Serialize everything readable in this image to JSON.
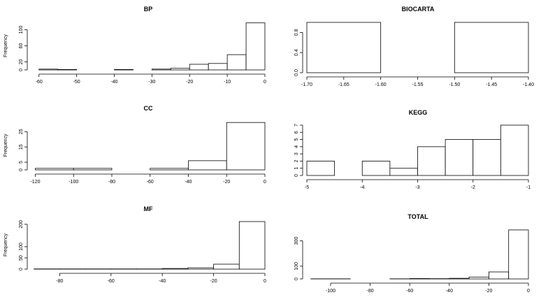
{
  "chart_data": [
    {
      "type": "bar",
      "title": "BP",
      "ylabel": "Frequency",
      "xlim": [
        -62,
        0
      ],
      "ylim": [
        0,
        120
      ],
      "xticks": [
        -60,
        -50,
        -40,
        -30,
        -20,
        -10,
        0
      ],
      "yticks": [
        0,
        20,
        60,
        100
      ],
      "bins": [
        {
          "x0": -60,
          "x1": -55,
          "count": 2
        },
        {
          "x0": -55,
          "x1": -50,
          "count": 1
        },
        {
          "x0": -50,
          "x1": -45,
          "count": 0
        },
        {
          "x0": -45,
          "x1": -40,
          "count": 0
        },
        {
          "x0": -40,
          "x1": -35,
          "count": 1
        },
        {
          "x0": -35,
          "x1": -30,
          "count": 0
        },
        {
          "x0": -30,
          "x1": -25,
          "count": 2
        },
        {
          "x0": -25,
          "x1": -20,
          "count": 4
        },
        {
          "x0": -20,
          "x1": -15,
          "count": 14
        },
        {
          "x0": -15,
          "x1": -10,
          "count": 16
        },
        {
          "x0": -10,
          "x1": -5,
          "count": 38
        },
        {
          "x0": -5,
          "x1": 0,
          "count": 117
        }
      ]
    },
    {
      "type": "bar",
      "title": "BIOCARTA",
      "ylabel": "",
      "xlim": [
        -1.7,
        -1.4
      ],
      "ylim": [
        0,
        1
      ],
      "xticks": [
        "-1.70",
        "-1.65",
        "-1.60",
        "-1.55",
        "-1.50",
        "-1.45",
        "-1.40"
      ],
      "yticks": [
        "0.0",
        "0.4",
        "0.8"
      ],
      "bins": [
        {
          "x0": -1.7,
          "x1": -1.6,
          "count": 1
        },
        {
          "x0": -1.6,
          "x1": -1.5,
          "count": 0
        },
        {
          "x0": -1.5,
          "x1": -1.4,
          "count": 1
        }
      ]
    },
    {
      "type": "bar",
      "title": "CC",
      "ylabel": "Frequency",
      "xlim": [
        -122,
        0
      ],
      "ylim": [
        0,
        32
      ],
      "xticks": [
        -120,
        -100,
        -80,
        -60,
        -40,
        -20,
        0
      ],
      "yticks": [
        0,
        5,
        15,
        25
      ],
      "bins": [
        {
          "x0": -120,
          "x1": -100,
          "count": 1
        },
        {
          "x0": -100,
          "x1": -80,
          "count": 1
        },
        {
          "x0": -80,
          "x1": -60,
          "count": 0
        },
        {
          "x0": -60,
          "x1": -40,
          "count": 1
        },
        {
          "x0": -40,
          "x1": -20,
          "count": 6
        },
        {
          "x0": -20,
          "x1": 0,
          "count": 31
        }
      ]
    },
    {
      "type": "bar",
      "title": "KEGG",
      "ylabel": "",
      "xlim": [
        -5,
        -1
      ],
      "ylim": [
        0,
        7
      ],
      "xticks": [
        -5,
        -4,
        -3,
        -2,
        -1
      ],
      "yticks": [
        0,
        1,
        2,
        3,
        4,
        5,
        6,
        7
      ],
      "bins": [
        {
          "x0": -5.0,
          "x1": -4.5,
          "count": 2
        },
        {
          "x0": -4.5,
          "x1": -4.0,
          "count": 0
        },
        {
          "x0": -4.0,
          "x1": -3.5,
          "count": 2
        },
        {
          "x0": -3.5,
          "x1": -3.0,
          "count": 1
        },
        {
          "x0": -3.0,
          "x1": -2.5,
          "count": 4
        },
        {
          "x0": -2.5,
          "x1": -2.0,
          "count": 5
        },
        {
          "x0": -2.0,
          "x1": -1.5,
          "count": 5
        },
        {
          "x0": -1.5,
          "x1": -1.0,
          "count": 7
        }
      ]
    },
    {
      "type": "bar",
      "title": "MF",
      "ylabel": "Frequency",
      "xlim": [
        -91,
        0
      ],
      "ylim": [
        0,
        215
      ],
      "xticks": [
        -80,
        -60,
        -40,
        -20,
        0
      ],
      "yticks": [
        0,
        50,
        100,
        200
      ],
      "bins": [
        {
          "x0": -90,
          "x1": -80,
          "count": 1
        },
        {
          "x0": -80,
          "x1": -70,
          "count": 1
        },
        {
          "x0": -70,
          "x1": -60,
          "count": 1
        },
        {
          "x0": -60,
          "x1": -50,
          "count": 1
        },
        {
          "x0": -50,
          "x1": -40,
          "count": 1
        },
        {
          "x0": -40,
          "x1": -30,
          "count": 3
        },
        {
          "x0": -30,
          "x1": -20,
          "count": 6
        },
        {
          "x0": -20,
          "x1": -10,
          "count": 22
        },
        {
          "x0": -10,
          "x1": 0,
          "count": 212
        }
      ]
    },
    {
      "type": "bar",
      "title": "TOTAL",
      "ylabel": "",
      "xlim": [
        -112,
        0
      ],
      "ylim": [
        0,
        390
      ],
      "xticks": [
        -100,
        -80,
        -60,
        -40,
        -20,
        0
      ],
      "yticks": [
        0,
        100,
        300
      ],
      "bins": [
        {
          "x0": -110,
          "x1": -100,
          "count": 1
        },
        {
          "x0": -100,
          "x1": -90,
          "count": 1
        },
        {
          "x0": -90,
          "x1": -80,
          "count": 0
        },
        {
          "x0": -80,
          "x1": -70,
          "count": 0
        },
        {
          "x0": -70,
          "x1": -60,
          "count": 1
        },
        {
          "x0": -60,
          "x1": -50,
          "count": 3
        },
        {
          "x0": -50,
          "x1": -40,
          "count": 2
        },
        {
          "x0": -40,
          "x1": -30,
          "count": 5
        },
        {
          "x0": -30,
          "x1": -20,
          "count": 15
        },
        {
          "x0": -20,
          "x1": -10,
          "count": 55
        },
        {
          "x0": -10,
          "x1": 0,
          "count": 385
        }
      ]
    }
  ]
}
